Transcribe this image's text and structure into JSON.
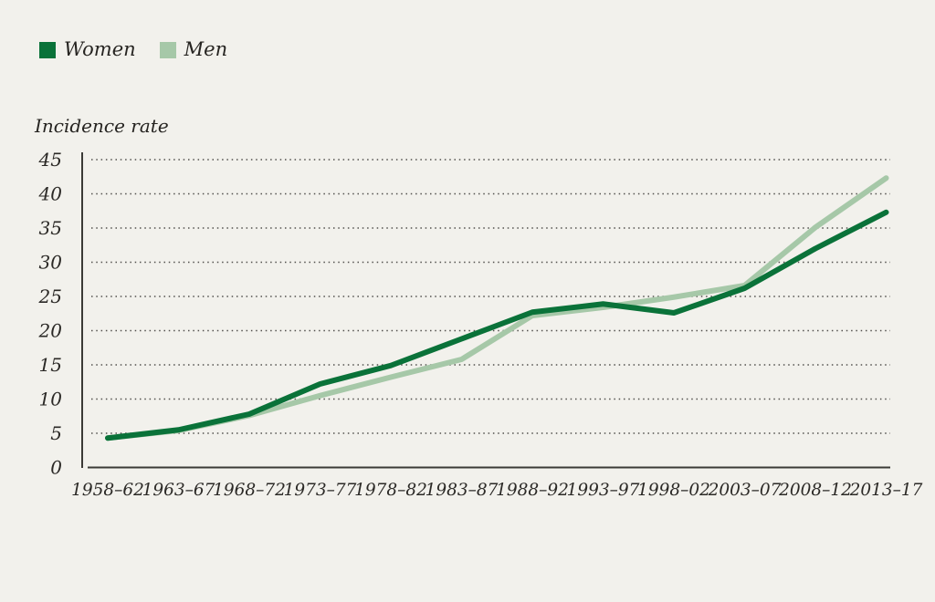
{
  "page": {
    "background_color": "#f2f1ec",
    "text_color": "#2b2926"
  },
  "legend": {
    "items": [
      {
        "label": "Women",
        "color": "#0a7239"
      },
      {
        "label": "Men",
        "color": "#a6c8a8"
      }
    ]
  },
  "chart_data": {
    "type": "line",
    "title": "",
    "ylabel": "Incidence rate",
    "xlabel": "",
    "categories": [
      "1958–62",
      "1963–67",
      "1968–72",
      "1973–77",
      "1978–82",
      "1983–87",
      "1988–92",
      "1993–97",
      "1998–02",
      "2003–07",
      "2008–12",
      "2013–17"
    ],
    "series": [
      {
        "name": "Women",
        "color": "#0a7239",
        "values": [
          4.3,
          5.5,
          7.8,
          12.2,
          14.9,
          18.8,
          22.7,
          23.9,
          22.6,
          26.2,
          32.0,
          37.3
        ]
      },
      {
        "name": "Men",
        "color": "#a6c8a8",
        "values": [
          4.3,
          5.4,
          7.6,
          10.5,
          13.2,
          15.8,
          22.2,
          23.4,
          24.9,
          26.6,
          35.1,
          42.3
        ]
      }
    ],
    "ylim": [
      0,
      45
    ],
    "ytick_step": 5,
    "grid": "horizontal-dotted",
    "legend_position": "top-left"
  }
}
